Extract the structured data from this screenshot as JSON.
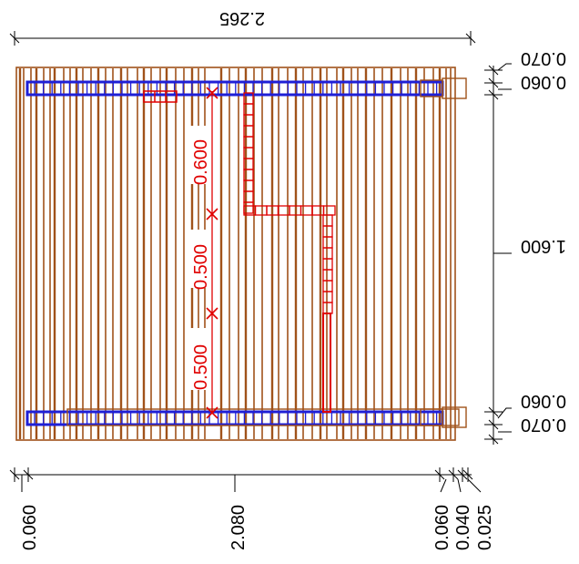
{
  "drawing": {
    "colors": {
      "board": "#a0521a",
      "rail": "#1f1fd6",
      "marks": "#e00000",
      "dims": "#000000"
    },
    "top_dimension": {
      "label": "2.265"
    },
    "right_dimensions": {
      "top_offset": "0.070",
      "top_rail": "0.060",
      "span": "1.600",
      "bottom_rail": "0.060",
      "bottom_offset": "0.070"
    },
    "red_dimensions": [
      "0.600",
      "0.500",
      "0.500"
    ],
    "bottom_dimensions": [
      "0.060",
      "2.080",
      "0.060",
      "0.040",
      "0.025"
    ]
  }
}
